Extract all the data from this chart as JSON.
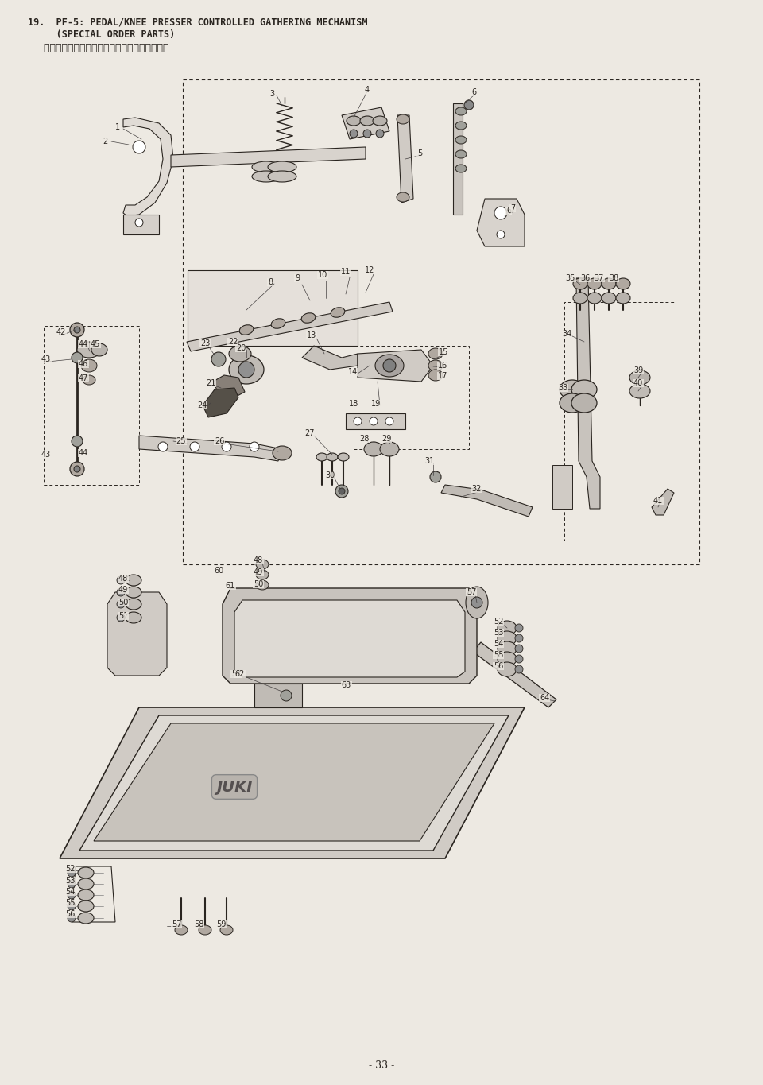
{
  "title_line1": "19.  PF-5: PEDAL/KNEE PRESSER CONTROLLED GATHERING MECHANISM",
  "title_line2": "     (SPECIAL ORDER PARTS)",
  "title_line3": "     ＰＦ－５：局部いせ込み装置（特別注文部品）",
  "footer": "- 33 -",
  "bg_color": "#ede9e2",
  "line_color": "#2a2520",
  "fig_width": 9.6,
  "fig_height": 13.65,
  "dpi": 100
}
